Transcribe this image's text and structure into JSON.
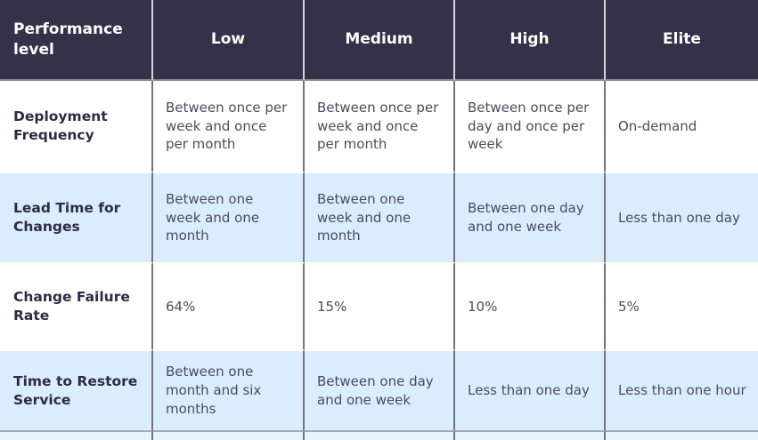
{
  "chart_data": {
    "type": "table",
    "title": "",
    "columns": [
      "Performance level",
      "Low",
      "Medium",
      "High",
      "Elite"
    ],
    "rows": [
      {
        "label": "Deployment Frequency",
        "values": [
          "Between once per week and once per month",
          "Between once per week and once per month",
          "Between once per day and once per week",
          "On-demand"
        ]
      },
      {
        "label": "Lead Time for Changes",
        "values": [
          "Between one week and one month",
          "Between one week and one month",
          "Between one day and one week",
          "Less than one day"
        ]
      },
      {
        "label": "Change Failure Rate",
        "values": [
          "64%",
          "15%",
          "10%",
          "5%"
        ]
      },
      {
        "label": "Time to Restore Service",
        "values": [
          "Between one month and six months",
          "Between one day and one week",
          "Less than one day",
          "Less than one hour"
        ]
      }
    ],
    "layout_hints": {
      "zebra_striping": "white / light-blue alternating rows",
      "header_position": "top",
      "legend": "none",
      "grid": "thin gray column dividers, white row gaps"
    }
  },
  "colors": {
    "header_bg": "#343149",
    "header_text": "#ffffff",
    "row_bg": "#ffffff",
    "row_alt_bg": "#daedfb",
    "partial_row_bg": "#e6f3fd",
    "label_text": "#2e2b45",
    "body_text": "#4c4b5e",
    "divider": "#74747e"
  }
}
